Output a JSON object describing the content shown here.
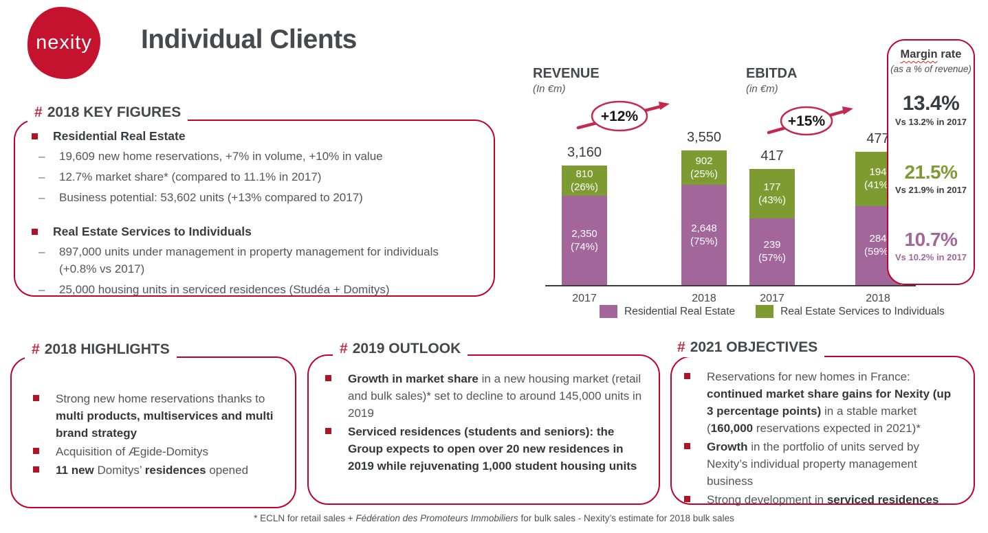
{
  "ui": {
    "hash": "#",
    "dash": "–"
  },
  "theme": {
    "brand_red": "#c5132f",
    "frame_red": "#c30029",
    "hash_red": "#c22a45",
    "arrow_crimson": "#c5274e",
    "purple": "#a2669a",
    "green": "#7e9b31",
    "heading_gray": "#46474c",
    "body_gray": "#54555a"
  },
  "brand": {
    "logo_text": "nexity"
  },
  "page_title": "Individual Clients",
  "key_figures": {
    "heading": "2018 KEY FIGURES",
    "groups": [
      {
        "title": "Residential Real Estate",
        "items": [
          "19,609 new home reservations, +7% in volume, +10% in value",
          "12.7% market share* (compared to 11.1% in 2017)",
          "Business potential: 53,602 units (+13% compared to 2017)"
        ]
      },
      {
        "title": "Real Estate Services to Individuals",
        "items": [
          "897,000 units under management in property management for individuals (+0.8% vs 2017)",
          "25,000 housing units in serviced residences (Studéa + Domitys)"
        ]
      }
    ]
  },
  "chart_data": [
    {
      "type": "bar",
      "subtype": "stacked",
      "title": "REVENUE",
      "subtitle": "(In €m)",
      "growth_label": "+12%",
      "categories": [
        "2017",
        "2018"
      ],
      "series": [
        {
          "name": "Residential Real Estate",
          "color": "#a2669a",
          "values": [
            2350,
            2648
          ],
          "labels": [
            "2,350",
            "2,648"
          ],
          "pcts": [
            "(74%)",
            "(75%)"
          ]
        },
        {
          "name": "Real Estate Services to Individuals",
          "color": "#7e9b31",
          "values": [
            810,
            902
          ],
          "labels": [
            "810",
            "902"
          ],
          "pcts": [
            "(26%)",
            "(25%)"
          ]
        }
      ],
      "totals_display": [
        "3,160",
        "3,550"
      ],
      "legend_position": "bottom",
      "grid": false
    },
    {
      "type": "bar",
      "subtype": "stacked",
      "title": "EBITDA",
      "subtitle": "(in €m)",
      "growth_label": "+15%",
      "categories": [
        "2017",
        "2018"
      ],
      "series": [
        {
          "name": "Residential Real Estate",
          "color": "#a2669a",
          "values": [
            239,
            284
          ],
          "labels": [
            "239",
            "284"
          ],
          "pcts": [
            "(57%)",
            "(59%)"
          ]
        },
        {
          "name": "Real Estate Services to Individuals",
          "color": "#7e9b31",
          "values": [
            177,
            194
          ],
          "labels": [
            "177",
            "194"
          ],
          "pcts": [
            "(43%)",
            "(41%)"
          ]
        }
      ],
      "totals_display": [
        "417",
        "477"
      ],
      "legend_position": "bottom",
      "grid": false
    }
  ],
  "legend": [
    {
      "label": "Residential Real Estate",
      "color": "#a2669a"
    },
    {
      "label": "Real Estate Services to Individuals",
      "color": "#7e9b31"
    }
  ],
  "margin_rate": {
    "title_underlined": "Margin",
    "title_rest": " rate",
    "subtitle": "(as a % of revenue)",
    "entries": [
      {
        "value": "13.4%",
        "vs": "Vs 13.2% in 2017",
        "color": "#3b3c41"
      },
      {
        "value": "21.5%",
        "vs": "Vs 21.9% in 2017",
        "color": "#7e9b31"
      },
      {
        "value": "10.7%",
        "vs": "Vs 10.2% in 2017",
        "color": "#a2669a"
      }
    ]
  },
  "sections": {
    "highlights": {
      "heading": "2018 HIGHLIGHTS",
      "bullets": [
        [
          {
            "t": "Strong new home reservations thanks to ",
            "b": false
          },
          {
            "t": "multi products, multiservices and multi brand strategy",
            "b": true
          }
        ],
        [
          {
            "t": "Acquisition of Ægide-Domitys",
            "b": false
          }
        ],
        [
          {
            "t": "11 new ",
            "b": true
          },
          {
            "t": "Domitys’ ",
            "b": false
          },
          {
            "t": "residences",
            "b": true
          },
          {
            "t": " opened",
            "b": false
          }
        ]
      ]
    },
    "outlook": {
      "heading": "2019 OUTLOOK",
      "bullets": [
        [
          {
            "t": "Growth in market share",
            "b": true
          },
          {
            "t": " in a new housing market (retail and bulk sales)* set to decline to around 145,000 units in 2019",
            "b": false
          }
        ],
        [
          {
            "t": "Serviced residences (students and seniors): the Group expects to open over 20 new residences in 2019 while rejuvenating 1,000 student housing units",
            "b": true
          }
        ]
      ]
    },
    "objectives": {
      "heading": "2021 OBJECTIVES",
      "bullets": [
        [
          {
            "t": "Reservations for new homes in France: ",
            "b": false
          },
          {
            "t": "continued market share gains for Nexity (up 3 percentage points)",
            "b": true
          },
          {
            "t": " in a stable market (",
            "b": false
          },
          {
            "t": "160,000",
            "b": true
          },
          {
            "t": " reservations expected in 2021)*",
            "b": false
          }
        ],
        [
          {
            "t": "Growth",
            "b": true
          },
          {
            "t": " in the portfolio of units served by Nexity’s individual property management business",
            "b": false
          }
        ],
        [
          {
            "t": "Strong development in ",
            "b": false
          },
          {
            "t": "serviced residences",
            "b": true
          }
        ]
      ]
    }
  },
  "footnote": [
    {
      "t": "* ECLN for retail sales + ",
      "i": false
    },
    {
      "t": "Fédération des Promoteurs Immobiliers",
      "i": true
    },
    {
      "t": " for bulk sales - Nexity’s estimate for 2018 bulk sales",
      "i": false
    }
  ]
}
